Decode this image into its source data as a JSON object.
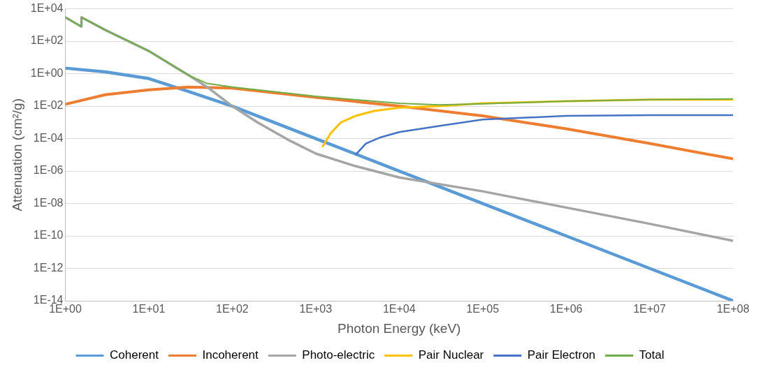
{
  "chart_data": {
    "type": "line",
    "xlabel": "Photon Energy (keV)",
    "ylabel": "Attenuation (cm²/g)",
    "log": "xy",
    "grid": "y",
    "legend": "bottom",
    "marker": "none",
    "line_style": "solid",
    "xlim": [
      1,
      100000000
    ],
    "ylim": [
      1e-14,
      10000
    ],
    "xticks": [
      {
        "value": 1,
        "label": "1E+00"
      },
      {
        "value": 10,
        "label": "1E+01"
      },
      {
        "value": 100,
        "label": "1E+02"
      },
      {
        "value": 1000,
        "label": "1E+03"
      },
      {
        "value": 10000,
        "label": "1E+04"
      },
      {
        "value": 100000,
        "label": "1E+05"
      },
      {
        "value": 1000000,
        "label": "1E+06"
      },
      {
        "value": 10000000,
        "label": "1E+07"
      },
      {
        "value": 100000000,
        "label": "1E+08"
      }
    ],
    "yticks": [
      {
        "value": 1e-14,
        "label": "1E-14"
      },
      {
        "value": 1e-12,
        "label": "1E-12"
      },
      {
        "value": 1e-10,
        "label": "1E-10"
      },
      {
        "value": 1e-08,
        "label": "1E-08"
      },
      {
        "value": 1e-06,
        "label": "1E-06"
      },
      {
        "value": 0.0001,
        "label": "1E-04"
      },
      {
        "value": 0.01,
        "label": "1E-02"
      },
      {
        "value": 1,
        "label": "1E+00"
      },
      {
        "value": 100,
        "label": "1E+02"
      },
      {
        "value": 10000,
        "label": "1E+04"
      }
    ],
    "series": [
      {
        "name": "Coherent",
        "color": "#5b9bd5",
        "x": [
          1,
          3,
          10,
          30,
          100,
          1000,
          10000,
          100000,
          1000000,
          10000000,
          100000000
        ],
        "values": [
          2.2,
          1.3,
          0.5,
          0.08,
          0.01,
          0.0001,
          1e-06,
          1e-08,
          1e-10,
          1e-12,
          1e-14
        ]
      },
      {
        "name": "Incoherent",
        "color": "#ed7d31",
        "x": [
          1,
          3,
          10,
          30,
          100,
          1000,
          10000,
          100000,
          1000000,
          10000000,
          100000000
        ],
        "values": [
          0.013,
          0.05,
          0.1,
          0.15,
          0.13,
          0.035,
          0.01,
          0.0025,
          0.0004,
          5e-05,
          5.6e-06
        ]
      },
      {
        "name": "Photo-electric",
        "color": "#a5a5a5",
        "x": [
          1,
          1.55,
          1.56,
          3,
          10,
          30,
          50,
          100,
          200,
          500,
          1000,
          3000,
          10000,
          100000,
          1000000,
          10000000,
          100000000
        ],
        "values": [
          3000,
          800,
          3000,
          500,
          25,
          0.8,
          0.15,
          0.01,
          0.001,
          7e-05,
          1.2e-05,
          2e-06,
          4e-07,
          5.6e-08,
          5.6e-09,
          5.6e-10,
          5e-11
        ]
      },
      {
        "name": "Pair Nuclear",
        "color": "#ffc000",
        "x": [
          1200,
          1500,
          2000,
          3000,
          5000,
          10000,
          30000,
          100000,
          1000000,
          10000000,
          100000000
        ],
        "values": [
          3e-05,
          0.0002,
          0.001,
          0.0025,
          0.005,
          0.008,
          0.01,
          0.015,
          0.02,
          0.025,
          0.025
        ]
      },
      {
        "name": "Pair Electron",
        "color": "#4472c4",
        "x": [
          3000,
          4000,
          6000,
          10000,
          30000,
          100000,
          1000000,
          10000000,
          100000000
        ],
        "values": [
          1e-05,
          5e-05,
          0.00012,
          0.00025,
          0.0006,
          0.0015,
          0.0025,
          0.0028,
          0.0028
        ]
      },
      {
        "name": "Total",
        "color": "#70ad47",
        "x": [
          1,
          1.55,
          1.56,
          3,
          10,
          30,
          50,
          100,
          1000,
          10000,
          30000,
          100000,
          1000000,
          10000000,
          100000000
        ],
        "values": [
          3000,
          800,
          3000,
          500,
          25,
          0.8,
          0.25,
          0.15,
          0.04,
          0.015,
          0.012,
          0.014,
          0.02,
          0.025,
          0.028
        ]
      }
    ]
  }
}
